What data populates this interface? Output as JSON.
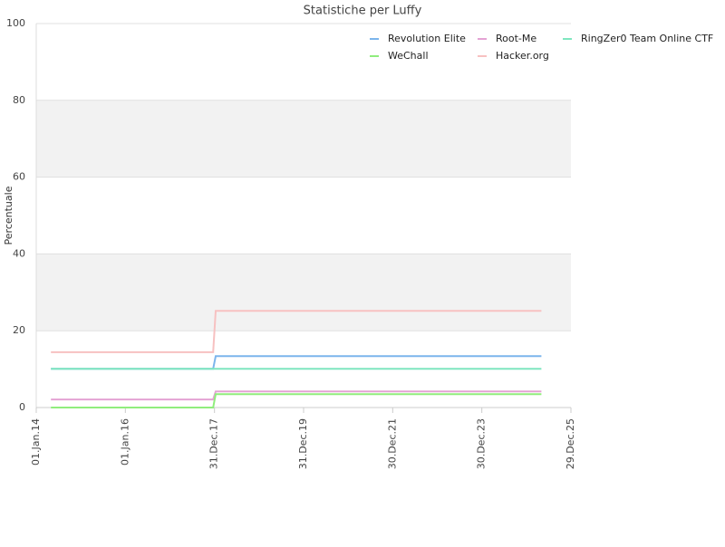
{
  "chart_data": {
    "type": "line",
    "title": "Statistiche per Luffy",
    "ylabel": "Percentuale",
    "x": [
      "2014-05-01",
      "2017-12-20",
      "2018-01-10",
      "2025-05-01"
    ],
    "series": [
      {
        "name": "Revolution Elite",
        "color": "#7cb5ec",
        "values": [
          10.1,
          10.1,
          13.4,
          13.4
        ]
      },
      {
        "name": "Root-Me",
        "color": "#e4a3d4",
        "values": [
          2.1,
          2.1,
          4.2,
          4.2
        ]
      },
      {
        "name": "RingZer0 Team Online CTF",
        "color": "#7fe6bf",
        "values": [
          10.1,
          10.1,
          10.1,
          10.1
        ]
      },
      {
        "name": "WeChall",
        "color": "#90ed7d",
        "values": [
          0,
          0,
          3.5,
          3.5
        ]
      },
      {
        "name": "Hacker.org",
        "color": "#f7c1c1",
        "values": [
          14.4,
          14.4,
          25.2,
          25.2
        ]
      }
    ],
    "xlim": [
      "2014-01-01",
      "2025-12-29"
    ],
    "xticks": [
      {
        "value": "2014-01-01",
        "label": "01.Jan.14"
      },
      {
        "value": "2016-01-01",
        "label": "01.Jan.16"
      },
      {
        "value": "2017-12-31",
        "label": "31.Dec.17"
      },
      {
        "value": "2019-12-31",
        "label": "31.Dec.19"
      },
      {
        "value": "2021-12-30",
        "label": "30.Dec.21"
      },
      {
        "value": "2023-12-30",
        "label": "30.Dec.23"
      },
      {
        "value": "2025-12-29",
        "label": "29.Dec.25"
      }
    ],
    "ylim": [
      0,
      100
    ],
    "yticks": [
      0,
      20,
      40,
      60,
      80,
      100
    ],
    "grid": true,
    "alternate_bands": true,
    "legend": "top-right"
  }
}
